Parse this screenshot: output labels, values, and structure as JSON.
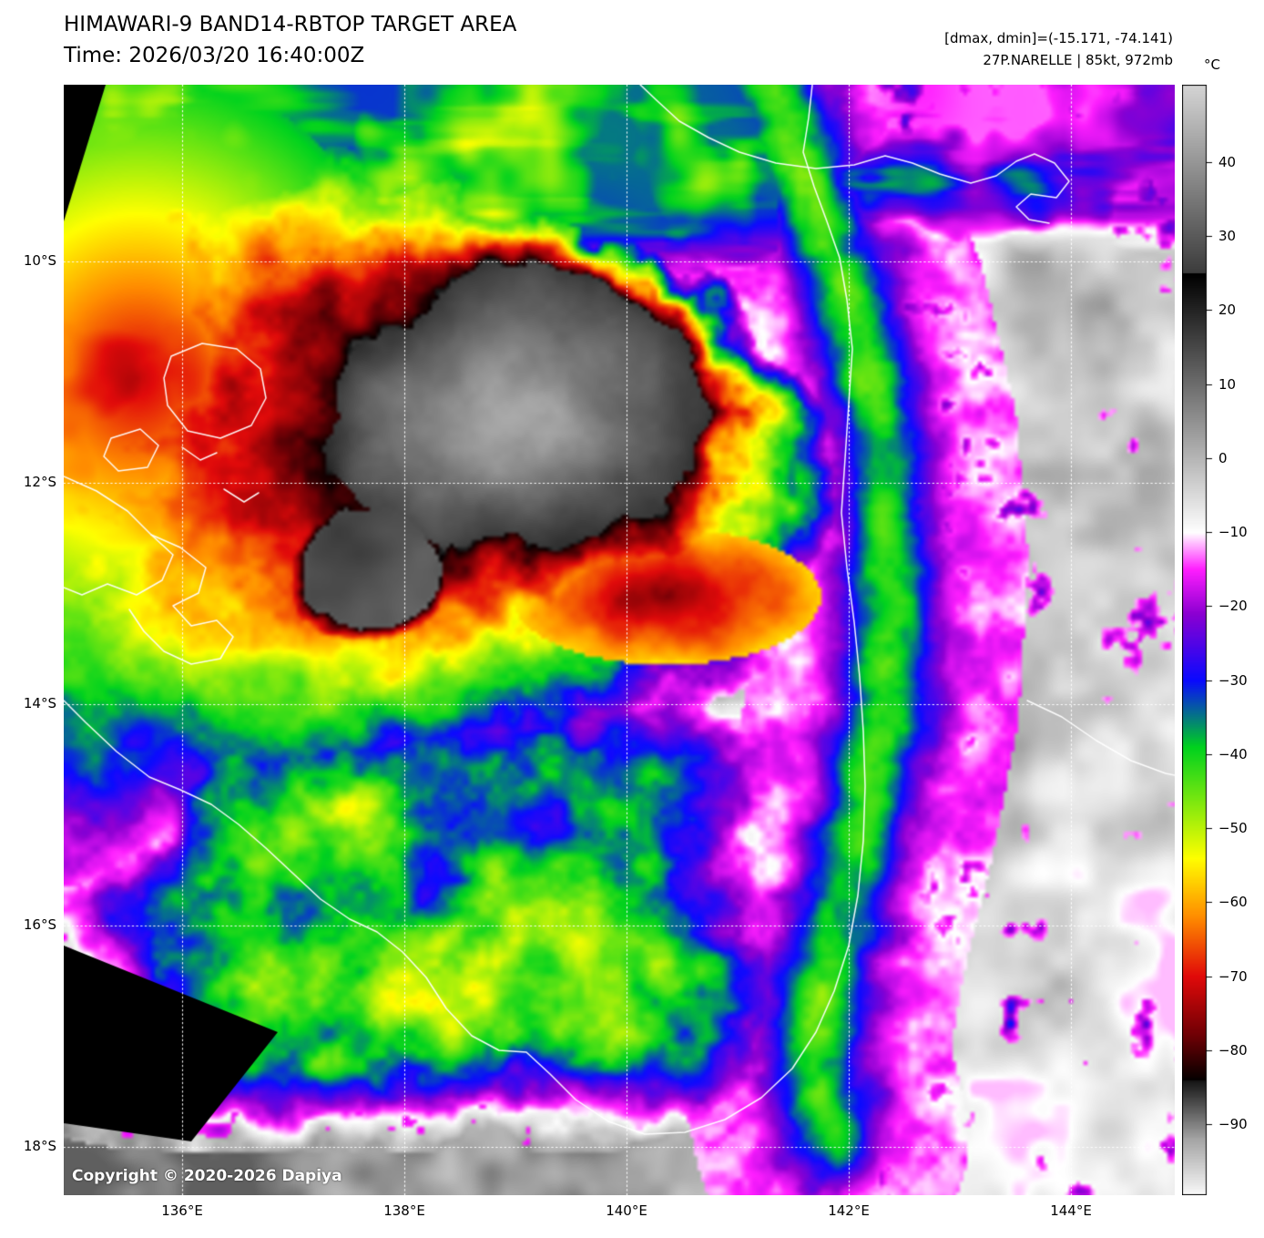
{
  "header": {
    "title": "HIMAWARI-9 BAND14-RBTOP TARGET AREA",
    "time": "Time: 2026/03/20 16:40:00Z"
  },
  "info": {
    "dmax_dmin": "[dmax, dmin]=(-15.171, -74.141)",
    "storm": "27P.NARELLE | 85kt, 972mb"
  },
  "colorbar": {
    "unit": "°C",
    "ticks": [
      40,
      30,
      20,
      10,
      0,
      -10,
      -20,
      -30,
      -40,
      -50,
      -60,
      -70,
      -80,
      -90
    ]
  },
  "axes": {
    "lat": [
      "10°S",
      "12°S",
      "14°S",
      "16°S",
      "18°S"
    ],
    "lon": [
      "136°E",
      "138°E",
      "140°E",
      "142°E",
      "144°E"
    ]
  },
  "watermark": "Copyright © 2020-2026 Dapiya"
}
